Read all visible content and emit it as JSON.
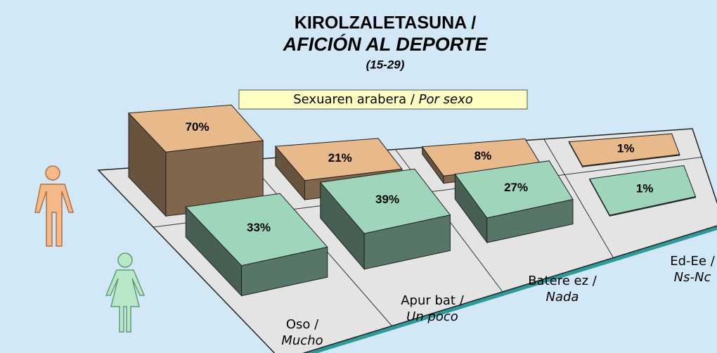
{
  "chart_data": {
    "type": "bar3d",
    "title": [
      "KIROLZALETASUNA /",
      "AFICIÓN AL DEPORTE"
    ],
    "subtitle": "(15-29)",
    "annotation": [
      "Sexuaren arabera /",
      "Por sexo"
    ],
    "categories": [
      [
        "Oso /",
        "Mucho"
      ],
      [
        "Apur bat /",
        "Un poco"
      ],
      [
        "Batere ez /",
        "Nada"
      ],
      [
        "Ed-Ee /",
        "Ns-Nc"
      ]
    ],
    "series": [
      {
        "color": "#e8b98a",
        "values": [
          70,
          21,
          8,
          1
        ],
        "value_labels": [
          "70%",
          "21%",
          "8%",
          "1%"
        ]
      },
      {
        "color": "#9fd6bb",
        "values": [
          33,
          39,
          27,
          1
        ],
        "value_labels": [
          "33%",
          "39%",
          "27%",
          "1%"
        ]
      }
    ]
  }
}
